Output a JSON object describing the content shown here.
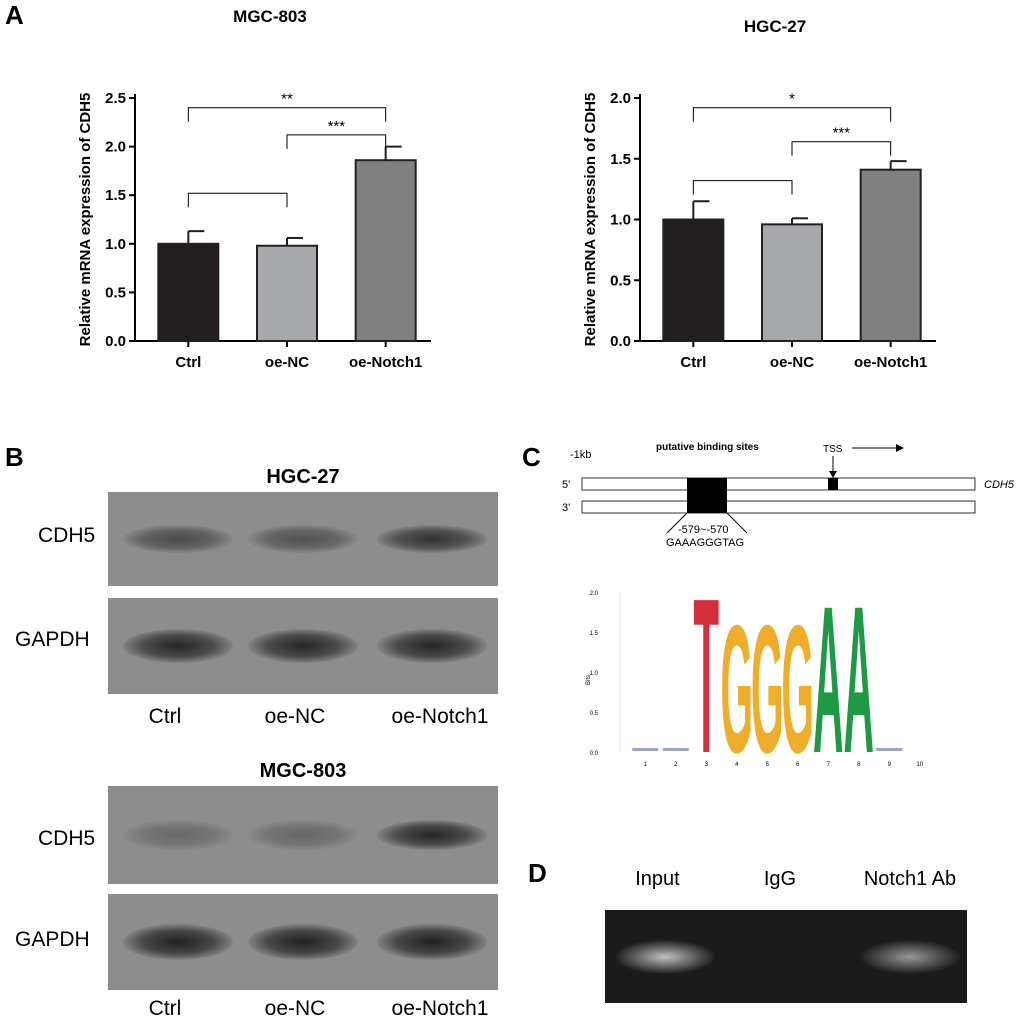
{
  "panels": {
    "a": "A",
    "b": "B",
    "c": "C",
    "d": "D"
  },
  "chart_data": [
    {
      "type": "bar",
      "title": "MGC-803",
      "ylabel": "Relative mRNA expression of CDH5",
      "categories": [
        "Ctrl",
        "oe-NC",
        "oe-Notch1"
      ],
      "values": [
        1.0,
        0.98,
        1.86
      ],
      "errors": [
        0.13,
        0.08,
        0.14
      ],
      "colors": [
        "#231f20",
        "#a7a9ac",
        "#808080"
      ],
      "ylim": [
        0,
        2.5
      ],
      "yticks": [
        "0.0",
        "0.5",
        "1.0",
        "1.5",
        "2.0",
        "2.5"
      ],
      "significance": [
        {
          "from": 0,
          "to": 2,
          "label": "**",
          "level": 2.4
        },
        {
          "from": 1,
          "to": 2,
          "label": "***",
          "level": 2.12
        },
        {
          "from": 0,
          "to": 1,
          "label": "",
          "level": 1.52
        }
      ]
    },
    {
      "type": "bar",
      "title": "HGC-27",
      "ylabel": "Relative mRNA expression of CDH5",
      "categories": [
        "Ctrl",
        "oe-NC",
        "oe-Notch1"
      ],
      "values": [
        1.0,
        0.96,
        1.41
      ],
      "errors": [
        0.15,
        0.05,
        0.07
      ],
      "colors": [
        "#231f20",
        "#a7a9ac",
        "#808080"
      ],
      "ylim": [
        0,
        2.0
      ],
      "yticks": [
        "0.0",
        "0.5",
        "1.0",
        "1.5",
        "2.0"
      ],
      "significance": [
        {
          "from": 0,
          "to": 2,
          "label": "*",
          "level": 1.92
        },
        {
          "from": 1,
          "to": 2,
          "label": "***",
          "level": 1.64
        },
        {
          "from": 0,
          "to": 1,
          "label": "",
          "level": 1.32
        }
      ]
    },
    {
      "type": "bar",
      "title": "",
      "ylabel": "Bits",
      "xlabel": "",
      "ylim": [
        0,
        2.0
      ],
      "yticks": [
        "0.0",
        "0.5",
        "1.0",
        "1.5",
        "2.0"
      ],
      "categories": [
        "1",
        "2",
        "3",
        "4",
        "5",
        "6",
        "7",
        "8",
        "9",
        "10"
      ],
      "letters": [
        "",
        "",
        "T",
        "G",
        "G",
        "G",
        "A",
        "A",
        "",
        ""
      ],
      "values": [
        0.02,
        0.05,
        2.0,
        1.65,
        1.65,
        1.65,
        1.9,
        1.9,
        0.01,
        0.0
      ],
      "letter_colors": {
        "T": "#d62f3c",
        "G": "#f0ad29",
        "A": "#1e9a45"
      }
    }
  ],
  "blots": {
    "hgc27": {
      "title": "HGC-27",
      "rows": [
        "CDH5",
        "GAPDH"
      ],
      "lanes": [
        "Ctrl",
        "oe-NC",
        "oe-Notch1"
      ],
      "cdh5_intensity": [
        0.55,
        0.5,
        0.75
      ],
      "gapdh_intensity": [
        0.85,
        0.85,
        0.85
      ]
    },
    "mgc803": {
      "title": "MGC-803",
      "rows": [
        "CDH5",
        "GAPDH"
      ],
      "lanes": [
        "Ctrl",
        "oe-NC",
        "oe-Notch1"
      ],
      "cdh5_intensity": [
        0.3,
        0.32,
        0.85
      ],
      "gapdh_intensity": [
        0.9,
        0.9,
        0.9
      ]
    }
  },
  "promoter": {
    "upstream_label": "-1kb",
    "binding_sites_label": "putative binding sites",
    "tss_label": "TSS",
    "strand5": "5'",
    "strand3": "3'",
    "gene": "CDH5",
    "site_position": "-579~-570",
    "site_sequence": "GAAAGGGTAG"
  },
  "gel": {
    "lanes": [
      "Input",
      "IgG",
      "Notch1 Ab"
    ],
    "band_intensity": [
      0.8,
      0.0,
      0.6
    ]
  }
}
